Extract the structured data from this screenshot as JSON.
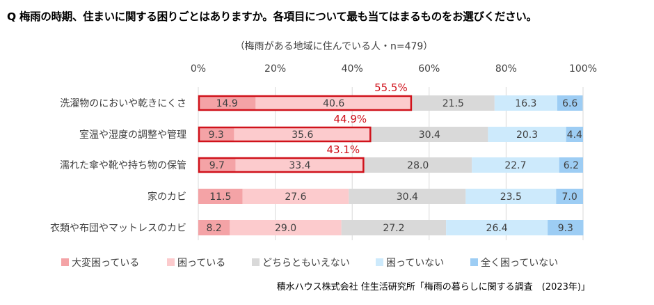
{
  "chart_data": {
    "type": "bar",
    "orientation": "horizontal",
    "stacked": true,
    "title": "Q 梅雨の時期、住まいに関する困りごとはありますか。各項目について最も当てはまるものをお選びください。",
    "subtitle": "（梅雨がある地域に住んでいる人・n=479）",
    "xlim": [
      0,
      100
    ],
    "x_ticks": [
      "0%",
      "20%",
      "40%",
      "60%",
      "80%",
      "100%"
    ],
    "grid": true,
    "legend_position": "bottom",
    "categories": [
      "洗濯物のにおいや乾きにくさ",
      "室温や湿度の調整や管理",
      "濡れた傘や靴や持ち物の保管",
      "家のカビ",
      "衣類や布団やマットレスのカビ"
    ],
    "series": [
      {
        "name": "大変困っている",
        "color": "#f4a3a6",
        "values": [
          14.9,
          9.3,
          9.7,
          11.5,
          8.2
        ]
      },
      {
        "name": "困っている",
        "color": "#fccbcd",
        "values": [
          40.6,
          35.6,
          33.4,
          27.6,
          29.0
        ]
      },
      {
        "name": "どちらともいえない",
        "color": "#d9d9d9",
        "values": [
          21.5,
          30.4,
          28.0,
          30.4,
          27.2
        ]
      },
      {
        "name": "困っていない",
        "color": "#cdeafc",
        "values": [
          16.3,
          20.3,
          22.7,
          23.5,
          26.4
        ]
      },
      {
        "name": "全く困っていない",
        "color": "#9dcdf4",
        "values": [
          6.6,
          4.4,
          6.2,
          7.0,
          9.3
        ]
      }
    ],
    "highlights": [
      {
        "category": "洗濯物のにおいや乾きにくさ",
        "label": "55.5%",
        "value": 55.5
      },
      {
        "category": "室温や湿度の調整や管理",
        "label": "44.9%",
        "value": 44.9
      },
      {
        "category": "濡れた傘や靴や持ち物の保管",
        "label": "43.1%",
        "value": 43.1
      }
    ],
    "highlight_color": "#d0121b"
  },
  "source": "積水ハウス株式会社 住生活研究所「梅雨の暮らしに関する調査　(2023年)」"
}
